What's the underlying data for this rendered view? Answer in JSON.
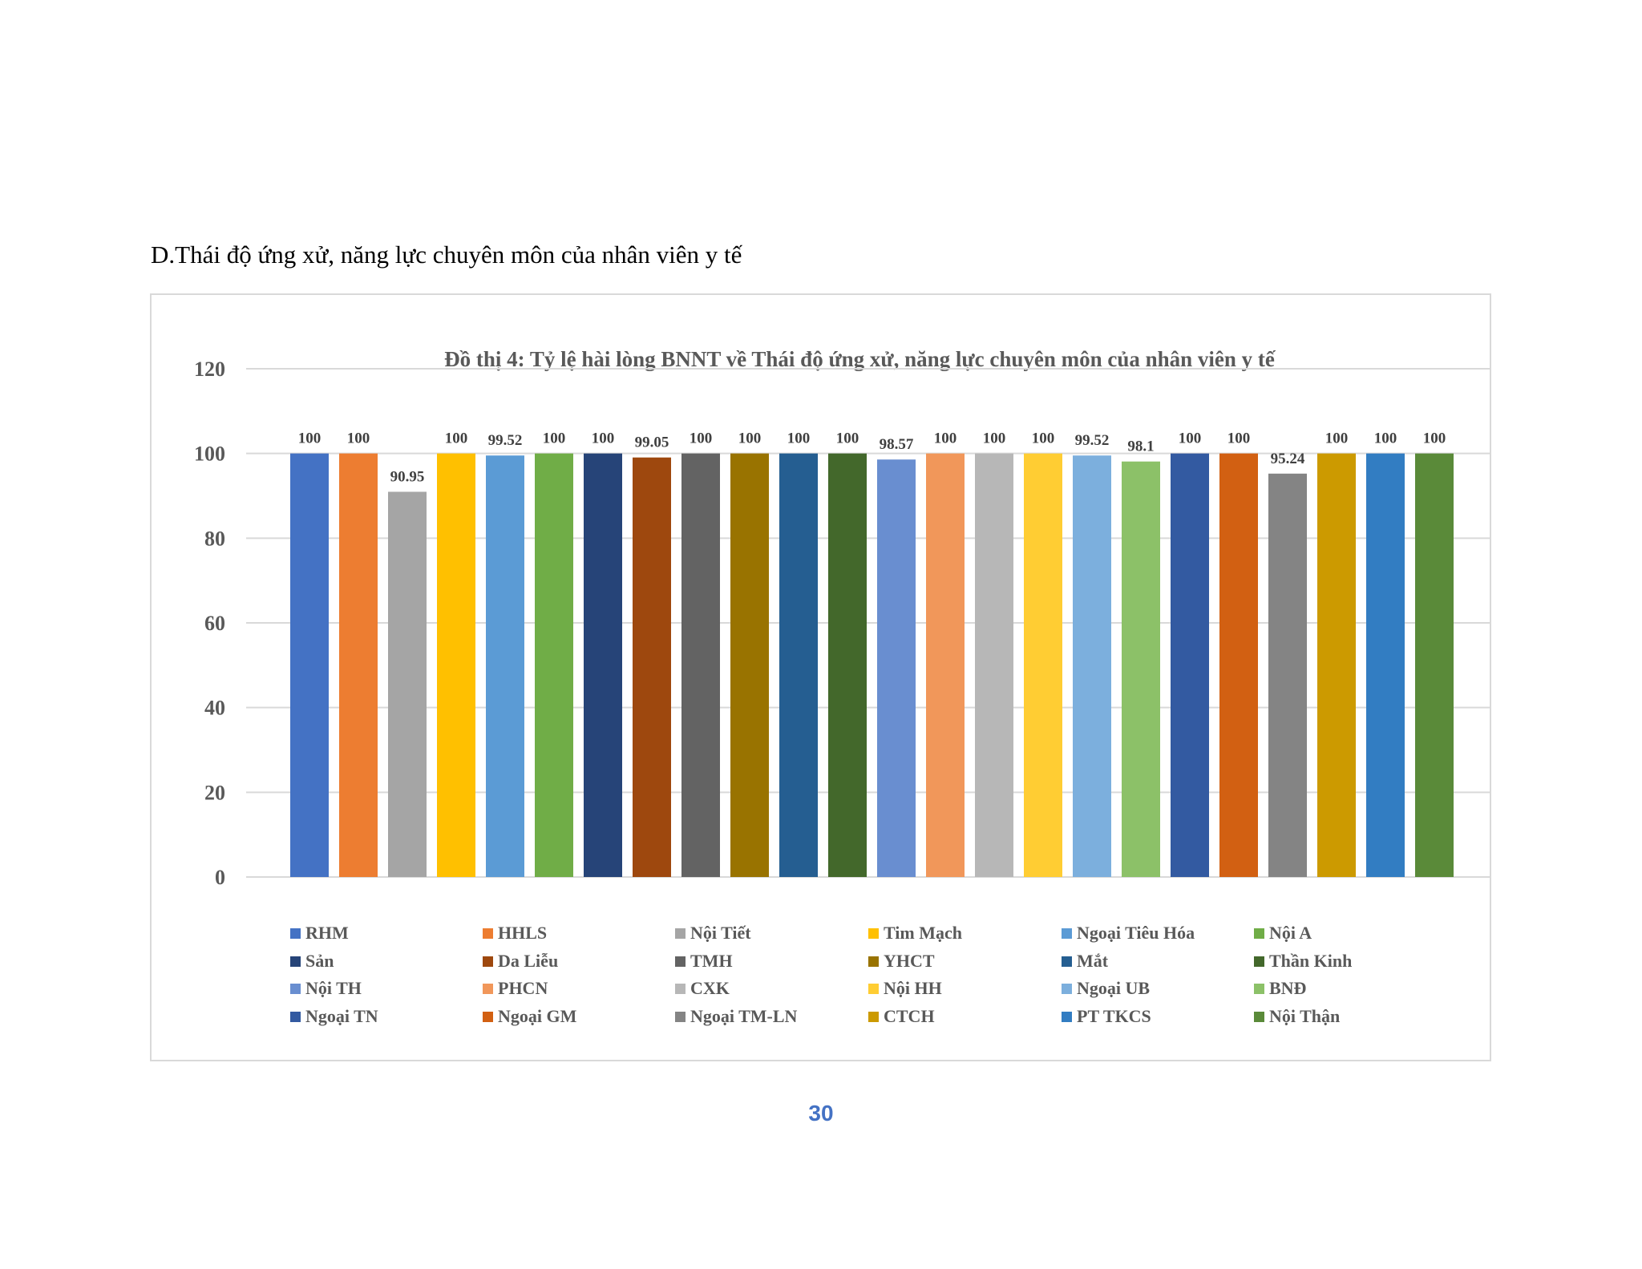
{
  "page": {
    "section_heading": "D.Thái độ ứng xử, năng lực chuyên môn của nhân viên y tế",
    "page_number": "30"
  },
  "chart_data": {
    "type": "bar",
    "title": "Đồ thị 4: Tỷ lệ hài lòng BNNT về Thái độ ứng xử, năng lực chuyên môn của nhân viên y tế",
    "xlabel": "",
    "ylabel": "",
    "ylim": [
      0,
      120
    ],
    "yticks": [
      0,
      20,
      40,
      60,
      80,
      100,
      120
    ],
    "grid": true,
    "legend_position": "bottom",
    "categories": [
      "RHM",
      "HHLS",
      "Nội Tiết",
      "Tim Mạch",
      "Ngoại Tiêu Hóa",
      "Nội A",
      "Sản",
      "Da Liễu",
      "TMH",
      "YHCT",
      "Mắt",
      "Thần Kinh",
      "Nội TH",
      "PHCN",
      "CXK",
      "Nội HH",
      "Ngoại UB",
      "BNĐ",
      "Ngoại TN",
      "Ngoại GM",
      "Ngoại TM-LN",
      "CTCH",
      "PT TKCS",
      "Nội Thận"
    ],
    "values": [
      100,
      100,
      90.95,
      100,
      99.52,
      100,
      100,
      99.05,
      100,
      100,
      100,
      100,
      98.57,
      100,
      100,
      100,
      99.52,
      98.1,
      100,
      100,
      95.24,
      100,
      100,
      100
    ],
    "value_labels": [
      "100",
      "100",
      "90.95",
      "100",
      "99.52",
      "100",
      "100",
      "99.05",
      "100",
      "100",
      "100",
      "100",
      "98.57",
      "100",
      "100",
      "100",
      "99.52",
      "98.1",
      "100",
      "100",
      "95.24",
      "100",
      "100",
      "100"
    ],
    "colors": [
      "#4472c4",
      "#ed7d31",
      "#a5a5a5",
      "#ffc000",
      "#5b9bd5",
      "#70ad47",
      "#264478",
      "#9e480e",
      "#636363",
      "#997300",
      "#255e91",
      "#43682b",
      "#698ed0",
      "#f1975a",
      "#b7b7b7",
      "#ffcd33",
      "#7cafdd",
      "#8cc168",
      "#335aa1",
      "#d26012",
      "#848484",
      "#cc9a00",
      "#327dc2",
      "#5a8a39"
    ]
  }
}
